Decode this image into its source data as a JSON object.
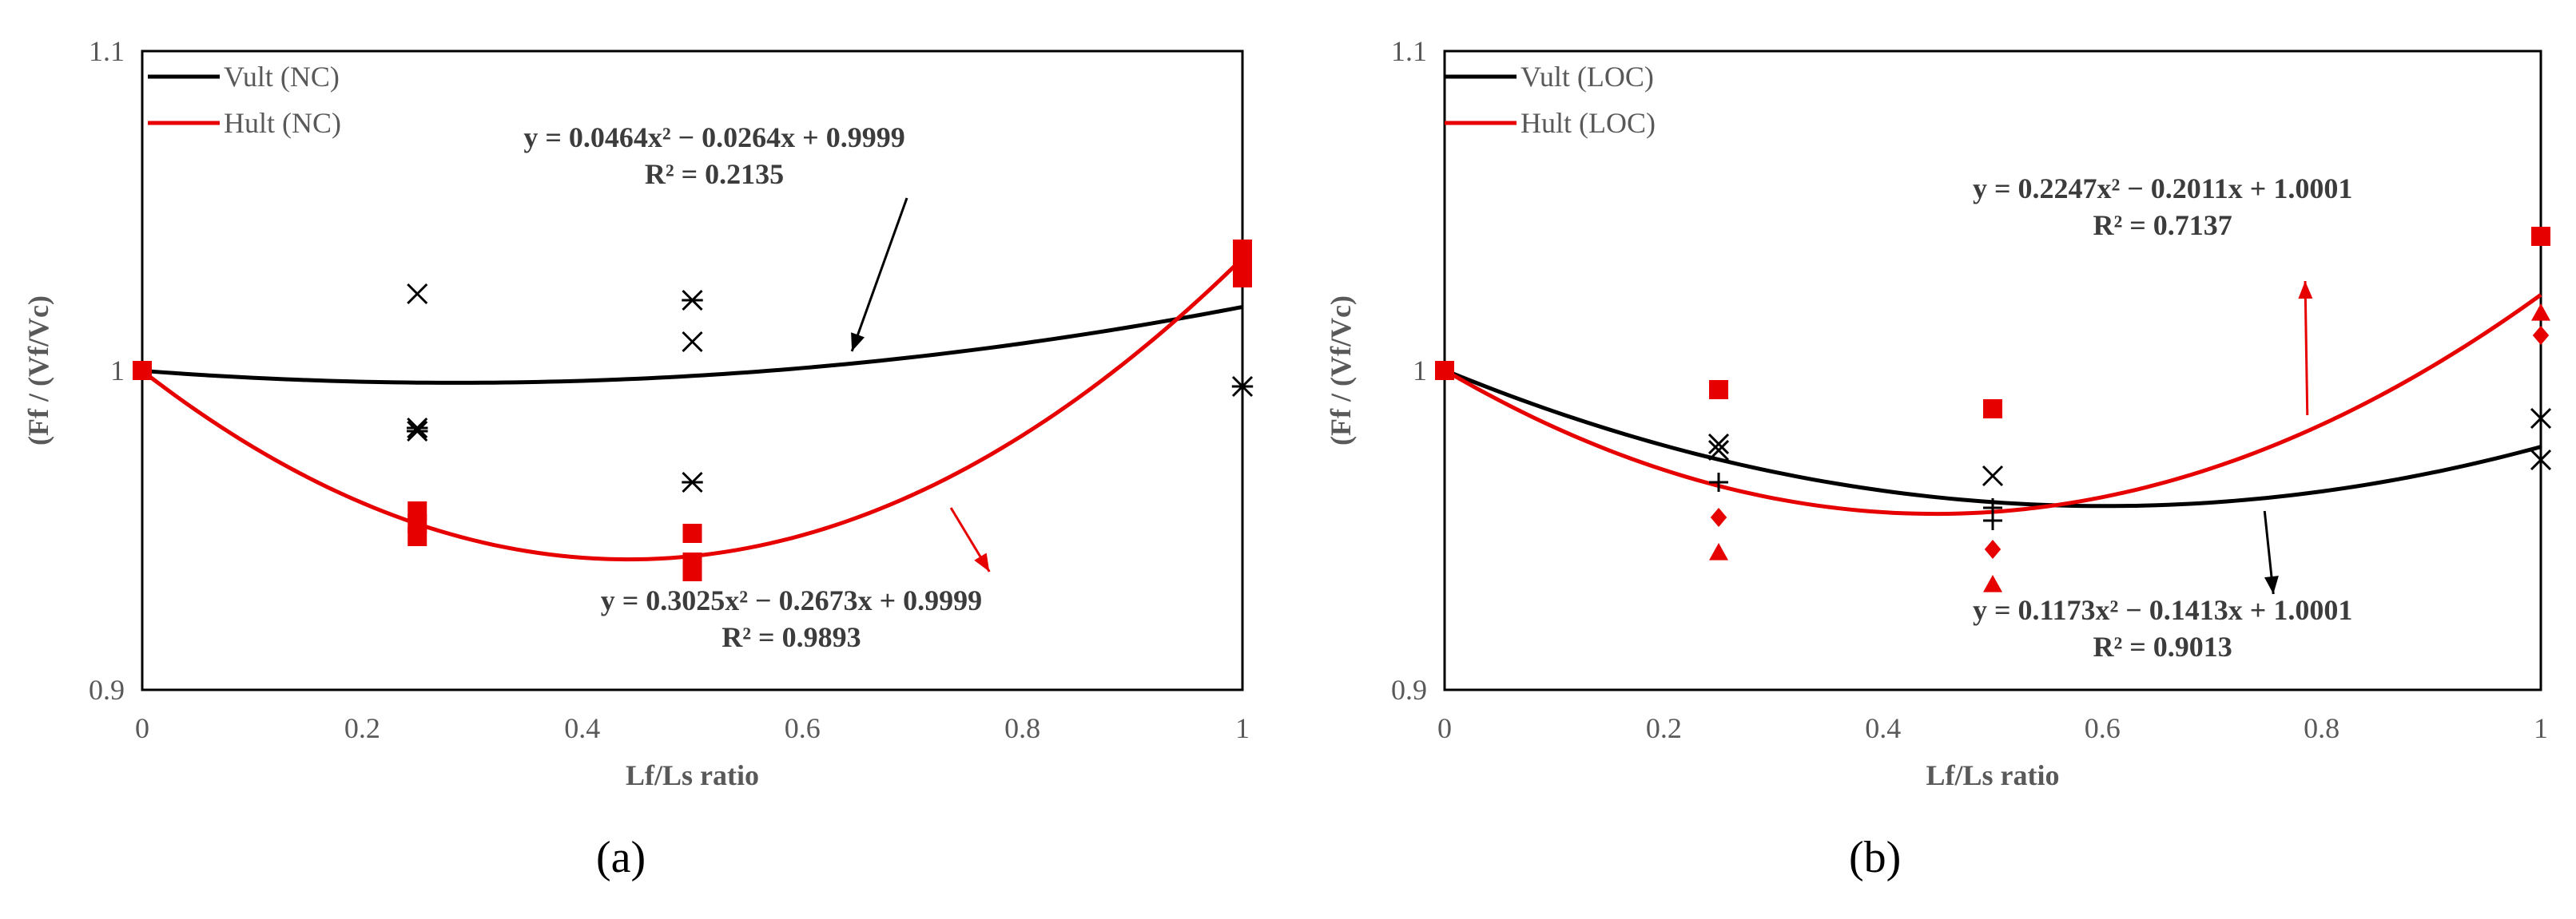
{
  "figure": {
    "panels": [
      {
        "label": "(a)"
      },
      {
        "label": "(b)"
      }
    ]
  },
  "chart_data": [
    {
      "type": "scatter",
      "panel": "(a)",
      "xlabel": "Lf/Ls ratio",
      "ylabel": "(Ff / (Vf/Vc)",
      "xlim": [
        0,
        1
      ],
      "ylim": [
        0.9,
        1.1
      ],
      "xticks": [
        "0",
        "0.2",
        "0.4",
        "0.6",
        "0.8",
        "1"
      ],
      "yticks": [
        "0.9",
        "1",
        "1.1"
      ],
      "legend_position": "top-left",
      "legend": [
        {
          "name": "Vult (NC)",
          "color": "#000000"
        },
        {
          "name": "Hult (NC)",
          "color": "#e60000"
        }
      ],
      "trendlines": [
        {
          "series": "Vult (NC)",
          "color": "#000000",
          "coeffs": [
            0.0464,
            -0.0264,
            0.9999
          ]
        },
        {
          "series": "Hult (NC)",
          "color": "#e60000",
          "coeffs": [
            0.3025,
            -0.2673,
            0.9999
          ]
        }
      ],
      "points": [
        {
          "series": "Vult (NC)",
          "marker": "x",
          "color": "#000000",
          "x": 0.25,
          "y": 1.024
        },
        {
          "series": "Vult (NC)",
          "marker": "star",
          "color": "#000000",
          "x": 0.25,
          "y": 0.981
        },
        {
          "series": "Vult (NC)",
          "marker": "star",
          "color": "#000000",
          "x": 0.25,
          "y": 0.982
        },
        {
          "series": "Vult (NC)",
          "marker": "star",
          "color": "#000000",
          "x": 0.5,
          "y": 1.022
        },
        {
          "series": "Vult (NC)",
          "marker": "x",
          "color": "#000000",
          "x": 0.5,
          "y": 1.009
        },
        {
          "series": "Vult (NC)",
          "marker": "star",
          "color": "#000000",
          "x": 0.5,
          "y": 0.965
        },
        {
          "series": "Vult (NC)",
          "marker": "star",
          "color": "#000000",
          "x": 1,
          "y": 0.995
        },
        {
          "series": "Hult (NC)",
          "marker": "square",
          "color": "#e60000",
          "x": 0,
          "y": 1.0
        },
        {
          "series": "Hult (NC)",
          "marker": "square",
          "color": "#e60000",
          "x": 0.25,
          "y": 0.956
        },
        {
          "series": "Hult (NC)",
          "marker": "square",
          "color": "#e60000",
          "x": 0.25,
          "y": 0.952
        },
        {
          "series": "Hult (NC)",
          "marker": "square",
          "color": "#e60000",
          "x": 0.25,
          "y": 0.948
        },
        {
          "series": "Hult (NC)",
          "marker": "square",
          "color": "#e60000",
          "x": 0.5,
          "y": 0.949
        },
        {
          "series": "Hult (NC)",
          "marker": "square",
          "color": "#e60000",
          "x": 0.5,
          "y": 0.94
        },
        {
          "series": "Hult (NC)",
          "marker": "square",
          "color": "#e60000",
          "x": 0.5,
          "y": 0.937
        },
        {
          "series": "Hult (NC)",
          "marker": "square",
          "color": "#e60000",
          "x": 1,
          "y": 1.038
        },
        {
          "series": "Hult (NC)",
          "marker": "square",
          "color": "#e60000",
          "x": 1,
          "y": 1.034
        },
        {
          "series": "Hult (NC)",
          "marker": "square",
          "color": "#e60000",
          "x": 1,
          "y": 1.029
        }
      ],
      "annotations": [
        {
          "text": [
            "y = 0.0464x² − 0.0264x + 0.9999",
            "R² = 0.2135"
          ],
          "color": "#3c3c3c",
          "anchor": [
            0.52,
            1.07
          ],
          "arrow_color": "#000000",
          "arrow_from": [
            0.695,
            1.054
          ],
          "arrow_to": [
            0.645,
            1.006
          ]
        },
        {
          "text": [
            "y = 0.3025x² − 0.2673x + 0.9999",
            "R² = 0.9893"
          ],
          "color": "#3c3c3c",
          "anchor": [
            0.59,
            0.925
          ],
          "arrow_color": "#e60000",
          "arrow_from": [
            0.735,
            0.957
          ],
          "arrow_to": [
            0.77,
            0.937
          ]
        }
      ]
    },
    {
      "type": "scatter",
      "panel": "(b)",
      "xlabel": "Lf/Ls ratio",
      "ylabel": "(Ff / (Vf/Vc)",
      "xlim": [
        0,
        1
      ],
      "ylim": [
        0.9,
        1.1
      ],
      "xticks": [
        "0",
        "0.2",
        "0.4",
        "0.6",
        "0.8",
        "1"
      ],
      "yticks": [
        "0.9",
        "1",
        "1.1"
      ],
      "legend_position": "top-left",
      "legend": [
        {
          "name": "Vult (LOC)",
          "color": "#000000"
        },
        {
          "name": "Hult (LOC)",
          "color": "#e60000"
        }
      ],
      "trendlines": [
        {
          "series": "Vult (LOC)",
          "color": "#000000",
          "coeffs": [
            0.1173,
            -0.1413,
            1.0001
          ]
        },
        {
          "series": "Hult (LOC)",
          "color": "#e60000",
          "coeffs": [
            0.2247,
            -0.2011,
            1.0001
          ]
        }
      ],
      "points": [
        {
          "series": "Vult (LOC)",
          "marker": "x",
          "color": "#000000",
          "x": 0.25,
          "y": 0.977
        },
        {
          "series": "Vult (LOC)",
          "marker": "x",
          "color": "#000000",
          "x": 0.25,
          "y": 0.975
        },
        {
          "series": "Vult (LOC)",
          "marker": "plus",
          "color": "#000000",
          "x": 0.25,
          "y": 0.965
        },
        {
          "series": "Vult (LOC)",
          "marker": "x",
          "color": "#000000",
          "x": 0.5,
          "y": 0.967
        },
        {
          "series": "Vult (LOC)",
          "marker": "plus",
          "color": "#000000",
          "x": 0.5,
          "y": 0.957
        },
        {
          "series": "Vult (LOC)",
          "marker": "plus",
          "color": "#000000",
          "x": 0.5,
          "y": 0.953
        },
        {
          "series": "Vult (LOC)",
          "marker": "x",
          "color": "#000000",
          "x": 1,
          "y": 0.985
        },
        {
          "series": "Vult (LOC)",
          "marker": "x",
          "color": "#000000",
          "x": 1,
          "y": 0.972
        },
        {
          "series": "Hult (LOC)",
          "marker": "square",
          "color": "#e60000",
          "x": 0,
          "y": 1.0
        },
        {
          "series": "Hult (LOC)",
          "marker": "square",
          "color": "#e60000",
          "x": 0.25,
          "y": 0.994
        },
        {
          "series": "Hult (LOC)",
          "marker": "diamond",
          "color": "#e60000",
          "x": 0.25,
          "y": 0.954
        },
        {
          "series": "Hult (LOC)",
          "marker": "triangle",
          "color": "#e60000",
          "x": 0.25,
          "y": 0.943
        },
        {
          "series": "Hult (LOC)",
          "marker": "square",
          "color": "#e60000",
          "x": 0.5,
          "y": 0.988
        },
        {
          "series": "Hult (LOC)",
          "marker": "diamond",
          "color": "#e60000",
          "x": 0.5,
          "y": 0.944
        },
        {
          "series": "Hult (LOC)",
          "marker": "triangle",
          "color": "#e60000",
          "x": 0.5,
          "y": 0.933
        },
        {
          "series": "Hult (LOC)",
          "marker": "square",
          "color": "#e60000",
          "x": 1,
          "y": 1.042
        },
        {
          "series": "Hult (LOC)",
          "marker": "triangle",
          "color": "#e60000",
          "x": 1,
          "y": 1.018
        },
        {
          "series": "Hult (LOC)",
          "marker": "diamond",
          "color": "#e60000",
          "x": 1,
          "y": 1.011
        }
      ],
      "annotations": [
        {
          "text": [
            "y = 0.2247x² − 0.2011x + 1.0001",
            "R² = 0.7137"
          ],
          "color": "#3c3c3c",
          "anchor": [
            0.655,
            1.054
          ],
          "arrow_color": "#e60000",
          "arrow_from": [
            0.787,
            0.986
          ],
          "arrow_to": [
            0.785,
            1.028
          ]
        },
        {
          "text": [
            "y = 0.1173x² − 0.1413x + 1.0001",
            "R² = 0.9013"
          ],
          "color": "#3c3c3c",
          "anchor": [
            0.655,
            0.922
          ],
          "arrow_color": "#000000",
          "arrow_from": [
            0.748,
            0.956
          ],
          "arrow_to": [
            0.756,
            0.93
          ]
        }
      ]
    }
  ]
}
